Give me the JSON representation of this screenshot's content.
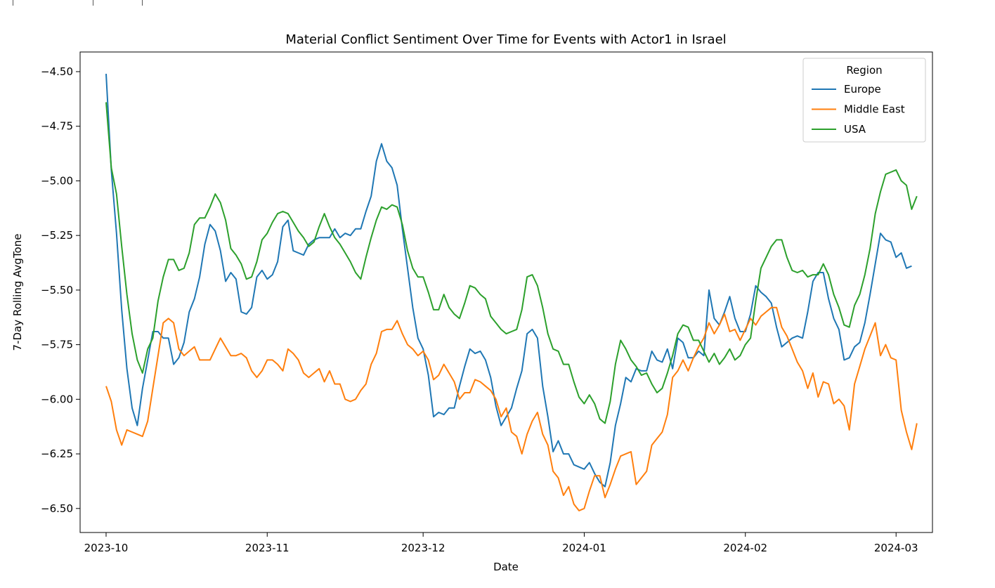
{
  "chart_data": {
    "type": "line",
    "title": "Material Conflict Sentiment Over Time for Events with Actor1 in Israel",
    "xlabel": "Date",
    "ylabel": "7-Day Rolling AvgTone",
    "x_ticks": [
      "2023-10",
      "2023-11",
      "2023-12",
      "2024-01",
      "2024-02",
      "2024-03"
    ],
    "x_start": "2023-10-01",
    "x_range": [
      "2023-09-26",
      "2024-03-08"
    ],
    "ylim": [
      -6.61,
      -4.41
    ],
    "y_ticks": [
      -4.5,
      -4.75,
      -5.0,
      -5.25,
      -5.5,
      -5.75,
      -6.0,
      -6.25,
      -6.5
    ],
    "grid": false,
    "legend_title": "Region",
    "legend_position": "top-right",
    "series": [
      {
        "name": "Europe",
        "color": "#1f77b4",
        "values": [
          -4.51,
          -4.95,
          -5.24,
          -5.59,
          -5.86,
          -6.04,
          -6.12,
          -5.95,
          -5.82,
          -5.69,
          -5.69,
          -5.72,
          -5.72,
          -5.84,
          -5.81,
          -5.74,
          -5.6,
          -5.54,
          -5.44,
          -5.29,
          -5.2,
          -5.23,
          -5.32,
          -5.46,
          -5.42,
          -5.45,
          -5.6,
          -5.61,
          -5.58,
          -5.44,
          -5.41,
          -5.45,
          -5.43,
          -5.37,
          -5.21,
          -5.18,
          -5.32,
          -5.33,
          -5.34,
          -5.29,
          -5.27,
          -5.26,
          -5.26,
          -5.26,
          -5.22,
          -5.26,
          -5.24,
          -5.25,
          -5.22,
          -5.22,
          -5.14,
          -5.07,
          -4.91,
          -4.83,
          -4.91,
          -4.94,
          -5.02,
          -5.22,
          -5.4,
          -5.58,
          -5.72,
          -5.77,
          -5.89,
          -6.08,
          -6.06,
          -6.07,
          -6.04,
          -6.04,
          -5.94,
          -5.85,
          -5.77,
          -5.79,
          -5.78,
          -5.82,
          -5.9,
          -6.03,
          -6.12,
          -6.08,
          -6.04,
          -5.95,
          -5.87,
          -5.7,
          -5.68,
          -5.72,
          -5.94,
          -6.08,
          -6.24,
          -6.19,
          -6.25,
          -6.25,
          -6.3,
          -6.31,
          -6.32,
          -6.29,
          -6.34,
          -6.38,
          -6.4,
          -6.29,
          -6.12,
          -6.02,
          -5.9,
          -5.92,
          -5.86,
          -5.87,
          -5.87,
          -5.78,
          -5.82,
          -5.83,
          -5.77,
          -5.86,
          -5.72,
          -5.74,
          -5.81,
          -5.81,
          -5.78,
          -5.8,
          -5.5,
          -5.63,
          -5.66,
          -5.6,
          -5.53,
          -5.63,
          -5.69,
          -5.69,
          -5.61,
          -5.48,
          -5.51,
          -5.53,
          -5.56,
          -5.67,
          -5.76,
          -5.74,
          -5.72,
          -5.71,
          -5.72,
          -5.6,
          -5.46,
          -5.42,
          -5.42,
          -5.54,
          -5.63,
          -5.68,
          -5.82,
          -5.81,
          -5.76,
          -5.74,
          -5.65,
          -5.52,
          -5.38,
          -5.24,
          -5.27,
          -5.28,
          -5.35,
          -5.33,
          -5.4,
          -5.39
        ]
      },
      {
        "name": "Middle East",
        "color": "#ff7f0e",
        "values": [
          -5.94,
          -6.01,
          -6.14,
          -6.21,
          -6.14,
          -6.15,
          -6.16,
          -6.17,
          -6.1,
          -5.95,
          -5.8,
          -5.65,
          -5.63,
          -5.65,
          -5.77,
          -5.8,
          -5.78,
          -5.76,
          -5.82,
          -5.82,
          -5.82,
          -5.77,
          -5.72,
          -5.76,
          -5.8,
          -5.8,
          -5.79,
          -5.81,
          -5.87,
          -5.9,
          -5.87,
          -5.82,
          -5.82,
          -5.84,
          -5.87,
          -5.77,
          -5.79,
          -5.82,
          -5.88,
          -5.9,
          -5.88,
          -5.86,
          -5.92,
          -5.87,
          -5.93,
          -5.93,
          -6.0,
          -6.01,
          -6.0,
          -5.96,
          -5.93,
          -5.84,
          -5.79,
          -5.69,
          -5.68,
          -5.68,
          -5.64,
          -5.7,
          -5.75,
          -5.77,
          -5.8,
          -5.78,
          -5.82,
          -5.91,
          -5.89,
          -5.84,
          -5.88,
          -5.92,
          -6.0,
          -5.97,
          -5.97,
          -5.91,
          -5.92,
          -5.94,
          -5.96,
          -6.0,
          -6.08,
          -6.04,
          -6.15,
          -6.17,
          -6.25,
          -6.16,
          -6.1,
          -6.06,
          -6.16,
          -6.21,
          -6.33,
          -6.36,
          -6.44,
          -6.4,
          -6.48,
          -6.51,
          -6.5,
          -6.42,
          -6.35,
          -6.35,
          -6.45,
          -6.39,
          -6.32,
          -6.26,
          -6.25,
          -6.24,
          -6.39,
          -6.36,
          -6.33,
          -6.21,
          -6.18,
          -6.15,
          -6.07,
          -5.9,
          -5.87,
          -5.82,
          -5.87,
          -5.81,
          -5.76,
          -5.72,
          -5.65,
          -5.7,
          -5.66,
          -5.61,
          -5.69,
          -5.68,
          -5.73,
          -5.68,
          -5.63,
          -5.66,
          -5.62,
          -5.6,
          -5.58,
          -5.58,
          -5.67,
          -5.71,
          -5.77,
          -5.83,
          -5.87,
          -5.95,
          -5.88,
          -5.99,
          -5.92,
          -5.93,
          -6.02,
          -6.0,
          -6.03,
          -6.14,
          -5.93,
          -5.85,
          -5.77,
          -5.71,
          -5.65,
          -5.8,
          -5.75,
          -5.81,
          -5.82,
          -6.05,
          -6.15,
          -6.23,
          -6.11
        ]
      },
      {
        "name": "USA",
        "color": "#2ca02c",
        "values": [
          -4.64,
          -4.94,
          -5.06,
          -5.3,
          -5.52,
          -5.7,
          -5.82,
          -5.88,
          -5.77,
          -5.72,
          -5.55,
          -5.44,
          -5.36,
          -5.36,
          -5.41,
          -5.4,
          -5.33,
          -5.2,
          -5.17,
          -5.17,
          -5.12,
          -5.06,
          -5.1,
          -5.18,
          -5.31,
          -5.34,
          -5.38,
          -5.45,
          -5.44,
          -5.37,
          -5.27,
          -5.24,
          -5.19,
          -5.15,
          -5.14,
          -5.15,
          -5.19,
          -5.23,
          -5.26,
          -5.3,
          -5.28,
          -5.21,
          -5.15,
          -5.21,
          -5.26,
          -5.29,
          -5.33,
          -5.37,
          -5.42,
          -5.45,
          -5.35,
          -5.26,
          -5.18,
          -5.12,
          -5.13,
          -5.11,
          -5.12,
          -5.2,
          -5.32,
          -5.4,
          -5.44,
          -5.44,
          -5.51,
          -5.59,
          -5.59,
          -5.52,
          -5.58,
          -5.61,
          -5.63,
          -5.56,
          -5.48,
          -5.49,
          -5.52,
          -5.54,
          -5.62,
          -5.65,
          -5.68,
          -5.7,
          -5.69,
          -5.68,
          -5.59,
          -5.44,
          -5.43,
          -5.48,
          -5.58,
          -5.7,
          -5.77,
          -5.78,
          -5.84,
          -5.84,
          -5.92,
          -5.99,
          -6.02,
          -5.98,
          -6.02,
          -6.09,
          -6.11,
          -6.01,
          -5.84,
          -5.73,
          -5.77,
          -5.82,
          -5.85,
          -5.89,
          -5.88,
          -5.93,
          -5.97,
          -5.95,
          -5.88,
          -5.8,
          -5.7,
          -5.66,
          -5.67,
          -5.73,
          -5.73,
          -5.78,
          -5.83,
          -5.79,
          -5.84,
          -5.81,
          -5.77,
          -5.82,
          -5.8,
          -5.75,
          -5.72,
          -5.55,
          -5.4,
          -5.35,
          -5.3,
          -5.27,
          -5.27,
          -5.35,
          -5.41,
          -5.42,
          -5.41,
          -5.44,
          -5.43,
          -5.43,
          -5.38,
          -5.43,
          -5.52,
          -5.58,
          -5.66,
          -5.67,
          -5.57,
          -5.52,
          -5.43,
          -5.31,
          -5.15,
          -5.05,
          -4.97,
          -4.96,
          -4.95,
          -5.0,
          -5.02,
          -5.13,
          -5.07
        ]
      }
    ]
  },
  "toolbar_marks": [
    "",
    "",
    ""
  ]
}
